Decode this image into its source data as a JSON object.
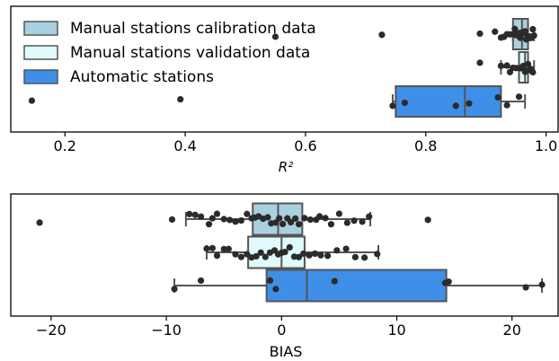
{
  "chart_data": [
    {
      "type": "box",
      "xlabel": "R²",
      "xlim": [
        0.11,
        1.02
      ],
      "xticks": [
        0.2,
        0.4,
        0.6,
        0.8,
        1.0
      ],
      "xtick_labels": [
        "0.2",
        "0.4",
        "0.6",
        "0.8",
        "1.0"
      ],
      "legend": {
        "placement": "top-left",
        "entries": [
          {
            "label": "Manual stations calibration data",
            "color": "#a9d0de"
          },
          {
            "label": "Manual stations validation data",
            "color": "#e0fbfb"
          },
          {
            "label": "Automatic stations",
            "color": "#3f8fe8"
          }
        ]
      },
      "series": [
        {
          "color": "#a9d0de",
          "box": {
            "q1": 0.945,
            "median": 0.96,
            "q3": 0.97,
            "whisker_low": 0.945,
            "whisker_high": 0.98
          },
          "points": [
            0.55,
            0.727,
            0.89,
            0.915,
            0.925,
            0.93,
            0.935,
            0.94,
            0.945,
            0.948,
            0.95,
            0.952,
            0.955,
            0.957,
            0.96,
            0.962,
            0.965,
            0.967,
            0.97,
            0.972,
            0.975,
            0.978,
            0.98
          ]
        },
        {
          "color": "#e0fbfb",
          "box": {
            "q1": 0.955,
            "median": 0.965,
            "q3": 0.97,
            "whisker_low": 0.925,
            "whisker_high": 0.98
          },
          "points": [
            0.89,
            0.925,
            0.935,
            0.94,
            0.945,
            0.95,
            0.955,
            0.958,
            0.96,
            0.962,
            0.965,
            0.967,
            0.97,
            0.972,
            0.975,
            0.978
          ]
        },
        {
          "color": "#3f8fe8",
          "box": {
            "q1": 0.75,
            "median": 0.865,
            "q3": 0.925,
            "whisker_low": 0.745,
            "whisker_high": 0.965
          },
          "points": [
            0.145,
            0.392,
            0.745,
            0.765,
            0.85,
            0.872,
            0.92,
            0.935,
            0.955
          ]
        }
      ]
    },
    {
      "type": "box",
      "xlabel": "BIAS",
      "xlim": [
        -23.5,
        24.0
      ],
      "xticks": [
        -20,
        -10,
        0,
        10,
        20
      ],
      "xtick_labels": [
        "−20",
        "−10",
        "0",
        "10",
        "20"
      ],
      "series": [
        {
          "color": "#a9d0de",
          "box": {
            "q1": -2.5,
            "median": -0.3,
            "q3": 1.8,
            "whisker_low": -8.3,
            "whisker_high": 7.7
          },
          "points": [
            -21.0,
            -9.5,
            -8.0,
            -7.5,
            -7.0,
            -6.3,
            -6.0,
            -5.6,
            -5.0,
            -4.5,
            -4.0,
            -3.5,
            -3.0,
            -2.6,
            -2.3,
            -2.0,
            -1.6,
            -1.2,
            -0.9,
            -0.5,
            -0.2,
            0.1,
            0.5,
            0.8,
            1.2,
            1.5,
            2.0,
            2.5,
            3.0,
            3.3,
            3.8,
            4.3,
            5.0,
            5.7,
            6.3,
            7.0,
            7.6,
            12.7
          ]
        },
        {
          "color": "#e0fbfb",
          "box": {
            "q1": -2.9,
            "median": 0.0,
            "q3": 2.0,
            "whisker_low": -6.5,
            "whisker_high": 8.4
          },
          "points": [
            -6.5,
            -6.0,
            -5.6,
            -5.0,
            -4.6,
            -4.0,
            -3.5,
            -3.0,
            -2.6,
            -2.2,
            -1.8,
            -1.4,
            -1.0,
            -0.6,
            -0.3,
            0.0,
            0.3,
            0.7,
            1.1,
            1.5,
            1.9,
            2.4,
            2.9,
            3.4,
            4.0,
            4.8,
            5.6,
            6.4,
            7.2,
            8.3
          ]
        },
        {
          "color": "#3f8fe8",
          "box": {
            "q1": -1.3,
            "median": 2.2,
            "q3": 14.3,
            "whisker_low": -9.3,
            "whisker_high": 22.6
          },
          "points": [
            -9.3,
            -7.0,
            -1.0,
            -0.5,
            4.6,
            14.2,
            14.5,
            21.2,
            22.6
          ]
        }
      ]
    }
  ]
}
